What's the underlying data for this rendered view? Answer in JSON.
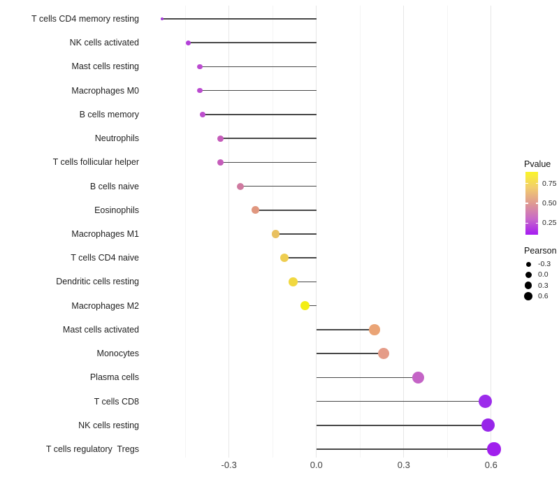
{
  "figure": {
    "background": "#ffffff"
  },
  "chart_data": {
    "type": "scatter",
    "variant": "horizontal-lollipop",
    "title": "",
    "xlabel": "",
    "ylabel": "",
    "grid": true,
    "baseline_x": 0.0,
    "xlim": [
      -0.592,
      0.67
    ],
    "x_tick_values": [
      -0.3,
      0.0,
      0.3,
      0.6
    ],
    "x_tick_labels": [
      "-0.3",
      "0.0",
      "0.3",
      "0.6"
    ],
    "x_minor_tick_values": [
      -0.45,
      -0.15,
      0.15,
      0.45
    ],
    "categories": [
      "T cells CD4 memory resting",
      "NK cells activated",
      "Mast cells resting",
      "Macrophages M0",
      "B cells memory",
      "Neutrophils",
      "T cells follicular helper",
      "B cells naive",
      "Eosinophils",
      "Macrophages M1",
      "T cells CD4 naive",
      "Dendritic cells resting",
      "Macrophages M2",
      "Mast cells activated",
      "Monocytes",
      "Plasma cells",
      "T cells CD8",
      "NK cells resting",
      "T cells regulatory  Tregs"
    ],
    "points": [
      {
        "label": "T cells CD4 memory resting",
        "pearson": -0.53,
        "color": "#a43ad8"
      },
      {
        "label": "NK cells activated",
        "pearson": -0.44,
        "color": "#b341d8"
      },
      {
        "label": "Mast cells resting",
        "pearson": -0.4,
        "color": "#bb4bd0"
      },
      {
        "label": "Macrophages M0",
        "pearson": -0.4,
        "color": "#bb4bd0"
      },
      {
        "label": "B cells memory",
        "pearson": -0.39,
        "color": "#bd4fcd"
      },
      {
        "label": "Neutrophils",
        "pearson": -0.33,
        "color": "#c55cba"
      },
      {
        "label": "T cells follicular helper",
        "pearson": -0.33,
        "color": "#c55cba"
      },
      {
        "label": "B cells naive",
        "pearson": -0.26,
        "color": "#cf7aa0"
      },
      {
        "label": "Eosinophils",
        "pearson": -0.21,
        "color": "#e0977f"
      },
      {
        "label": "Macrophages M1",
        "pearson": -0.14,
        "color": "#e9c160"
      },
      {
        "label": "T cells CD4 naive",
        "pearson": -0.11,
        "color": "#eecd50"
      },
      {
        "label": "Dendritic cells resting",
        "pearson": -0.08,
        "color": "#f1d840"
      },
      {
        "label": "Macrophages M2",
        "pearson": -0.04,
        "color": "#f3ee15"
      },
      {
        "label": "Mast cells activated",
        "pearson": 0.2,
        "color": "#eaa476"
      },
      {
        "label": "Monocytes",
        "pearson": 0.23,
        "color": "#e59c88"
      },
      {
        "label": "Plasma cells",
        "pearson": 0.35,
        "color": "#c464c6"
      },
      {
        "label": "T cells CD8",
        "pearson": 0.58,
        "color": "#9c2ceb"
      },
      {
        "label": "NK cells resting",
        "pearson": 0.59,
        "color": "#9726e9"
      },
      {
        "label": "T cells regulatory  Tregs",
        "pearson": 0.61,
        "color": "#a01fed"
      }
    ],
    "legend_position": "right",
    "legends": [
      {
        "type": "colorbar",
        "title": "Pvalue",
        "tick_labels": [
          "0.75",
          "0.50",
          "0.25"
        ],
        "tick_values": [
          0.75,
          0.5,
          0.25
        ],
        "bar_value_range": [
          0.9,
          0.1
        ],
        "gradient_top_to_bottom": [
          "#faf529",
          "#f2cd6e",
          "#df9a92",
          "#c869c9",
          "#a51bf2"
        ]
      },
      {
        "type": "size",
        "title": "Pearson",
        "labels": [
          "-0.3",
          "0.0",
          "0.3",
          "0.6"
        ],
        "values": [
          -0.3,
          0.0,
          0.3,
          0.6
        ]
      }
    ]
  },
  "colors": {
    "stem": "#474747",
    "grid_major": "#e7e7e7",
    "grid_minor": "#f4f4f4",
    "axis_text": "#404040",
    "category_text": "#1f1f1f",
    "legend_size_dot": "#000000"
  }
}
